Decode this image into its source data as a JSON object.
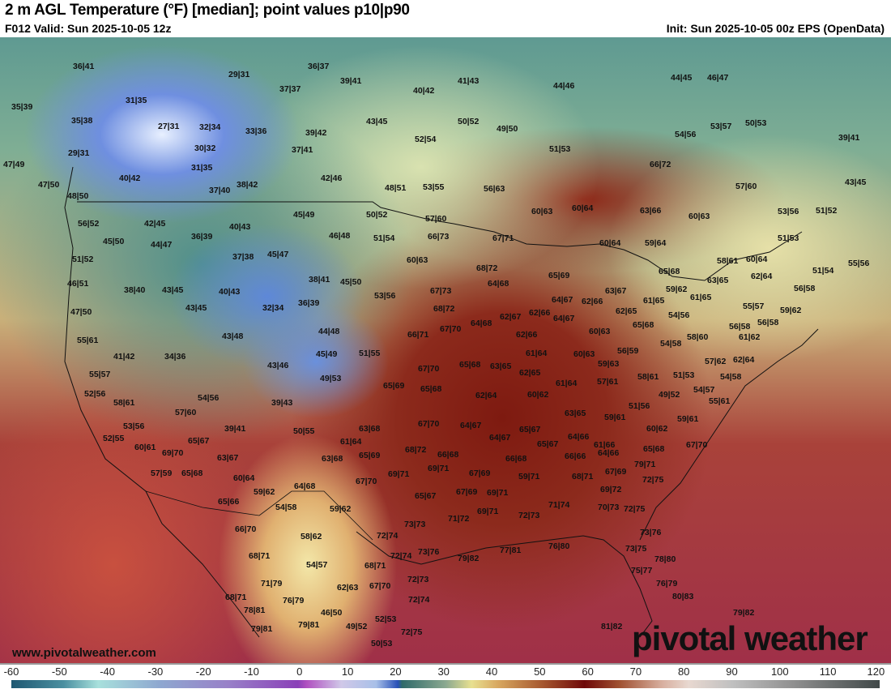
{
  "header": {
    "title": "2 m AGL Temperature (°F) [median]; point values p10|p90",
    "valid": "F012 Valid: Sun 2025-10-05 12z",
    "init": "Init: Sun 2025-10-05 00z EPS (OpenData)"
  },
  "map": {
    "point_values": [
      "36|41",
      "29|31",
      "36|37",
      "37|37",
      "39|41",
      "40|42",
      "41|43",
      "44|46",
      "44|45",
      "46|47",
      "35|39",
      "31|35",
      "43|45",
      "50|52",
      "49|50",
      "35|38",
      "27|31",
      "32|34",
      "33|36",
      "39|42",
      "52|54",
      "54|56",
      "53|57",
      "50|53",
      "39|41",
      "29|31",
      "30|32",
      "37|41",
      "51|53",
      "47|49",
      "31|35",
      "66|72",
      "40|42",
      "42|46",
      "47|50",
      "38|42",
      "48|51",
      "53|55",
      "56|63",
      "57|60",
      "43|45",
      "37|40",
      "48|50",
      "60|63",
      "60|64",
      "63|66",
      "60|63",
      "53|56",
      "51|52",
      "45|49",
      "50|52",
      "57|60",
      "56|52",
      "42|45",
      "40|43",
      "46|48",
      "51|54",
      "66|73",
      "67|71",
      "60|64",
      "59|64",
      "51|53",
      "45|50",
      "44|47",
      "36|39",
      "45|47",
      "37|38",
      "51|52",
      "60|63",
      "68|72",
      "58|61",
      "60|64",
      "65|68",
      "51|54",
      "55|56",
      "46|51",
      "38|40",
      "43|45",
      "38|41",
      "45|50",
      "64|68",
      "65|69",
      "63|67",
      "59|62",
      "63|65",
      "62|64",
      "56|58",
      "40|43",
      "53|56",
      "67|73",
      "64|67",
      "62|66",
      "61|65",
      "61|65",
      "55|57",
      "59|62",
      "47|50",
      "43|45",
      "32|34",
      "36|39",
      "68|72",
      "62|66",
      "62|65",
      "54|56",
      "62|67",
      "64|68",
      "67|70",
      "64|67",
      "65|68",
      "56|58",
      "56|58",
      "58|60",
      "60|63",
      "55|61",
      "43|48",
      "44|48",
      "66|71",
      "62|66",
      "61|62",
      "41|42",
      "34|36",
      "45|49",
      "51|55",
      "61|64",
      "60|63",
      "56|59",
      "54|58",
      "57|62",
      "62|64",
      "43|46",
      "67|70",
      "65|68",
      "63|65",
      "59|63",
      "62|65",
      "55|57",
      "49|53",
      "57|61",
      "58|61",
      "51|53",
      "54|58",
      "65|69",
      "65|68",
      "61|64",
      "52|56",
      "62|64",
      "60|62",
      "49|52",
      "54|57",
      "54|56",
      "58|61",
      "39|43",
      "51|56",
      "55|61",
      "63|65",
      "59|61",
      "59|61",
      "57|60",
      "53|56",
      "63|68",
      "67|70",
      "64|67",
      "39|41",
      "50|55",
      "65|67",
      "64|66",
      "60|62",
      "65|67",
      "52|55",
      "61|64",
      "64|67",
      "65|67",
      "61|66",
      "67|70",
      "60|61",
      "69|70",
      "68|72",
      "65|69",
      "66|68",
      "65|68",
      "63|67",
      "63|68",
      "66|68",
      "66|66",
      "64|66",
      "79|71",
      "57|59",
      "65|68",
      "69|71",
      "69|71",
      "67|69",
      "67|69",
      "60|64",
      "59|71",
      "68|71",
      "64|68",
      "67|70",
      "72|75",
      "59|62",
      "65|67",
      "67|69",
      "69|71",
      "69|72",
      "65|66",
      "54|58",
      "59|62",
      "71|72",
      "69|71",
      "72|73",
      "71|74",
      "70|73",
      "72|75",
      "66|70",
      "72|74",
      "73|73",
      "73|76",
      "58|62",
      "68|71",
      "72|74",
      "73|76",
      "79|82",
      "77|81",
      "76|80",
      "73|75",
      "78|80",
      "54|57",
      "68|71",
      "75|77",
      "71|79",
      "72|73",
      "76|79",
      "62|63",
      "67|70",
      "68|71",
      "76|79",
      "72|74",
      "80|83",
      "46|50",
      "78|81",
      "52|53",
      "79|82",
      "49|52",
      "79|81",
      "79|81",
      "72|75",
      "81|82",
      "50|53"
    ],
    "site": "www.pivotalweather.com",
    "brand": "pivotal weather"
  },
  "colorbar": {
    "unit": "°F",
    "ticks": [
      "-60",
      "-50",
      "-40",
      "-30",
      "-20",
      "-10",
      "0",
      "10",
      "20",
      "30",
      "40",
      "50",
      "60",
      "70",
      "80",
      "90",
      "100",
      "110",
      "120"
    ]
  }
}
